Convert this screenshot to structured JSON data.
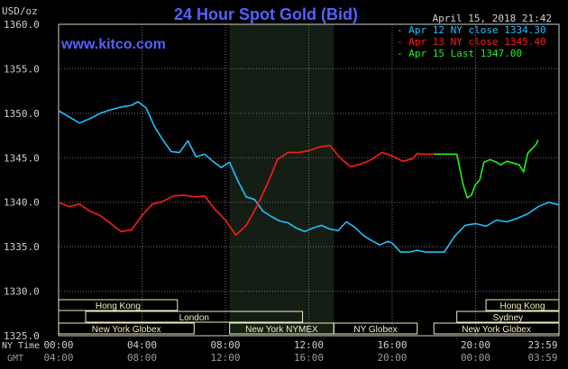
{
  "header": {
    "currency": "USD/oz",
    "title": "24 Hour Spot Gold (Bid)",
    "timestamp": "April 15, 2018 21:42",
    "website": "www.kitco.com",
    "time_label_ny": "NY Time",
    "time_label_gmt": "GMT"
  },
  "colors": {
    "background": "#000000",
    "frame": "#cfcfcf",
    "grid": "#6f6f6f",
    "nymex_shade": "#141e14",
    "title": "#5560ff",
    "website": "#5560ff",
    "session_box": "#eeeec0",
    "apr12": "#22c0ff",
    "apr13": "#ff1a1a",
    "apr15": "#22ee22",
    "axis_text": "#cfcfcf",
    "gmt_text": "#9a9a9a"
  },
  "legend": [
    {
      "label": "- Apr 12 NY close 1334.30",
      "color": "#22c0ff"
    },
    {
      "label": "- Apr 13 NY close 1345.40",
      "color": "#ff1a1a"
    },
    {
      "label": "- Apr 15 Last 1347.00",
      "color": "#22ee22"
    }
  ],
  "sessions": [
    {
      "label": "Hong Kong",
      "start": 0,
      "end": 5.7,
      "row": 0
    },
    {
      "label": "London",
      "start": 1.3,
      "end": 11.7,
      "row": 1
    },
    {
      "label": "New York Globex",
      "start": 0,
      "end": 6.5,
      "row": 2
    },
    {
      "label": "New York NYMEX",
      "start": 8.2,
      "end": 13.2,
      "row": 2
    },
    {
      "label": "NY Globex",
      "start": 13.2,
      "end": 17.2,
      "row": 2
    },
    {
      "label": "Hong Kong",
      "start": 20.5,
      "end": 24,
      "row": 0
    },
    {
      "label": "Sydney",
      "start": 19.1,
      "end": 24,
      "row": 1
    },
    {
      "label": "New York Globex",
      "start": 18,
      "end": 24,
      "row": 2
    }
  ],
  "nymex_shade": {
    "start": 8.2,
    "end": 13.2
  },
  "chart_data": {
    "type": "line",
    "title": "24 Hour Spot Gold (Bid)",
    "ylabel": "USD/oz",
    "xlabel": "",
    "xlim": [
      0,
      24
    ],
    "ylim": [
      1325,
      1360
    ],
    "y_ticks": [
      "1360.0",
      "1355.0",
      "1350.0",
      "1345.0",
      "1340.0",
      "1335.0",
      "1330.0",
      "1325.0"
    ],
    "x_ticks_ny": [
      "00:00",
      "04:00",
      "08:00",
      "12:00",
      "16:00",
      "20:00",
      "23:59"
    ],
    "x_ticks_gmt": [
      "04:00",
      "08:00",
      "12:00",
      "16:00",
      "20:00",
      "00:00",
      "03:59"
    ],
    "grid": true,
    "legend_position": "top-right",
    "series": [
      {
        "name": "Apr 12 NY close 1334.30",
        "color": "#22c0ff",
        "x": [
          0,
          0.5,
          1,
          1.5,
          2,
          2.5,
          3,
          3.5,
          3.8,
          4.2,
          4.6,
          5,
          5.4,
          5.8,
          6.2,
          6.6,
          7,
          7.4,
          7.8,
          8.2,
          8.6,
          9,
          9.4,
          9.8,
          10.2,
          10.6,
          11,
          11.4,
          11.8,
          12.2,
          12.6,
          13,
          13.4,
          13.8,
          14.2,
          14.6,
          15,
          15.4,
          15.8,
          16,
          16.4,
          16.8,
          17.2,
          17.6,
          18,
          18.5,
          19,
          19.5,
          20,
          20.5,
          21,
          21.5,
          22,
          22.5,
          23,
          23.5,
          24
        ],
        "y": [
          1350.3,
          1349.6,
          1348.9,
          1349.4,
          1350,
          1350.4,
          1350.7,
          1350.9,
          1351.3,
          1350.6,
          1348.5,
          1347,
          1345.7,
          1345.6,
          1346.9,
          1345.1,
          1345.4,
          1344.6,
          1343.9,
          1344.5,
          1342.4,
          1340.6,
          1340.3,
          1339,
          1338.4,
          1337.9,
          1337.7,
          1337.1,
          1336.7,
          1337.1,
          1337.4,
          1337,
          1336.8,
          1337.8,
          1337.2,
          1336.3,
          1335.7,
          1335.2,
          1335.6,
          1335.4,
          1334.4,
          1334.4,
          1334.6,
          1334.4,
          1334.4,
          1334.4,
          1336.2,
          1337.4,
          1337.6,
          1337.3,
          1338,
          1337.8,
          1338.2,
          1338.7,
          1339.5,
          1340,
          1339.7
        ]
      },
      {
        "name": "Apr 13 NY close 1345.40",
        "color": "#ff1a1a",
        "x": [
          0,
          0.5,
          1,
          1.5,
          2,
          2.5,
          3,
          3.5,
          4,
          4.5,
          5,
          5.5,
          6,
          6.5,
          7,
          7.5,
          8,
          8.5,
          9,
          9.5,
          10,
          10.5,
          11,
          11.5,
          12,
          12.5,
          13,
          13.5,
          14,
          14.5,
          15,
          15.5,
          16,
          16.5,
          17,
          17.2,
          17.4,
          17.6,
          17.8,
          18
        ],
        "y": [
          1340,
          1339.5,
          1339.8,
          1339,
          1338.5,
          1337.6,
          1336.7,
          1336.9,
          1338.5,
          1339.8,
          1340.1,
          1340.7,
          1340.8,
          1340.6,
          1340.7,
          1339.2,
          1338,
          1336.3,
          1337.4,
          1339.5,
          1342,
          1344.8,
          1345.6,
          1345.6,
          1345.8,
          1346.2,
          1346.4,
          1345,
          1344,
          1344.3,
          1344.8,
          1345.6,
          1345.2,
          1344.6,
          1344.9,
          1345.5,
          1345.4,
          1345.4,
          1345.4,
          1345.4
        ]
      },
      {
        "name": "Apr 15 Last 1347.00",
        "color": "#22ee22",
        "x": [
          18,
          18.2,
          18.5,
          18.8,
          19.1,
          19.4,
          19.6,
          19.8,
          20,
          20.2,
          20.4,
          20.7,
          21,
          21.2,
          21.5,
          21.8,
          22.1,
          22.3,
          22.5,
          22.7,
          22.9,
          23
        ],
        "y": [
          1345.4,
          1345.4,
          1345.4,
          1345.4,
          1345.4,
          1342,
          1340.5,
          1340.8,
          1342,
          1342.5,
          1344.5,
          1344.8,
          1344.5,
          1344.2,
          1344.6,
          1344.4,
          1344.2,
          1343.4,
          1345.5,
          1346,
          1346.5,
          1347
        ]
      }
    ]
  }
}
